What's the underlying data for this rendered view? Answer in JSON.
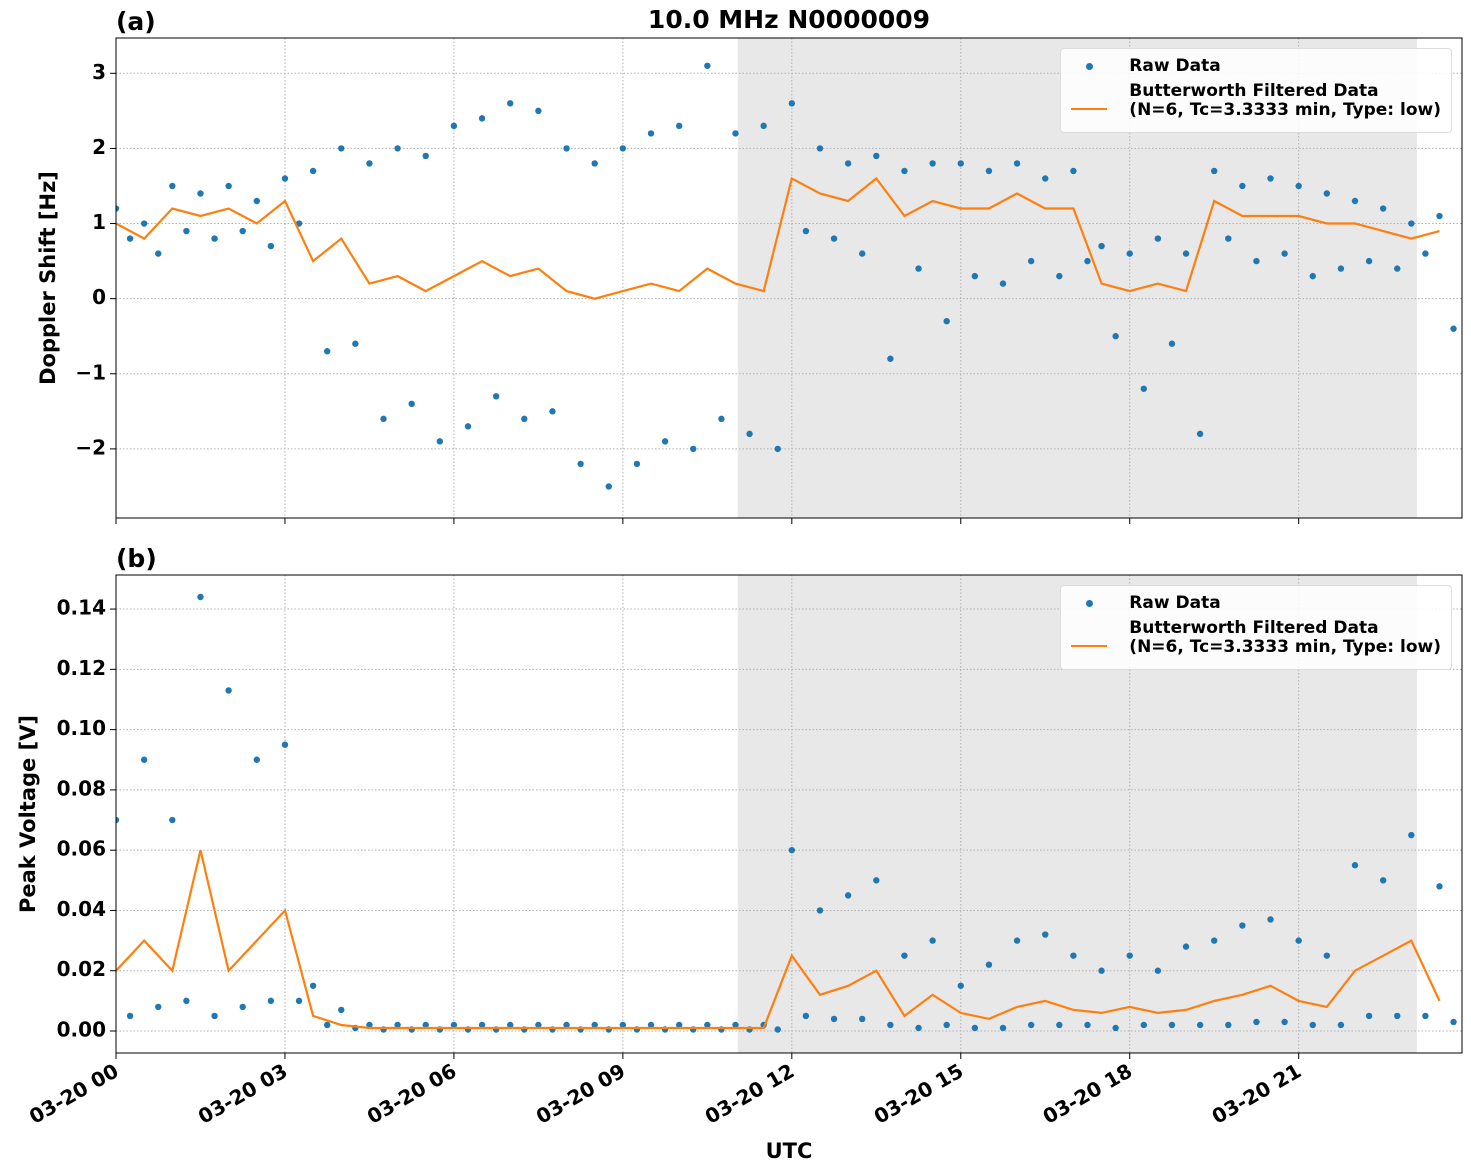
{
  "chart_data": [
    {
      "type": "scatter",
      "title": "10.0 MHz N0000009",
      "panel_label": "(a)",
      "ylabel": "Doppler Shift [Hz]",
      "xlim": [
        0,
        23.9
      ],
      "xticks": [
        0,
        3,
        6,
        9,
        12,
        15,
        18,
        21
      ],
      "ylim": [
        -2.92,
        3.47
      ],
      "yticks": [
        {
          "value": -2,
          "label": "−2"
        },
        {
          "value": -1,
          "label": "−1"
        },
        0,
        1,
        2,
        3
      ],
      "grid": true,
      "legend": "upper right",
      "shaded_span": [
        11.04,
        23.1
      ],
      "series": [
        {
          "name": "Raw Data",
          "type": "scatter",
          "color": "#1f77b4",
          "x": [
            0,
            0.25,
            0.5,
            0.75,
            1,
            1.25,
            1.5,
            1.75,
            2,
            2.25,
            2.5,
            2.75,
            3,
            3.25,
            3.5,
            3.75,
            4,
            4.25,
            4.5,
            4.75,
            5,
            5.25,
            5.5,
            5.75,
            6,
            6.25,
            6.5,
            6.75,
            7,
            7.25,
            7.5,
            7.75,
            8,
            8.25,
            8.5,
            8.75,
            9,
            9.25,
            9.5,
            9.75,
            10,
            10.25,
            10.5,
            10.75,
            11,
            11.25,
            11.5,
            11.75,
            12,
            12.25,
            12.5,
            12.75,
            13,
            13.25,
            13.5,
            13.75,
            14,
            14.25,
            14.5,
            14.75,
            15,
            15.25,
            15.5,
            15.75,
            16,
            16.25,
            16.5,
            16.75,
            17,
            17.25,
            17.5,
            17.75,
            18,
            18.25,
            18.5,
            18.75,
            19,
            19.25,
            19.5,
            19.75,
            20,
            20.25,
            20.5,
            20.75,
            21,
            21.25,
            21.5,
            21.75,
            22,
            22.25,
            22.5,
            22.75,
            23,
            23.25,
            23.5,
            23.75
          ],
          "values": [
            1.2,
            0.8,
            1.0,
            0.6,
            1.5,
            0.9,
            1.4,
            0.8,
            1.5,
            0.9,
            1.3,
            0.7,
            1.6,
            1.0,
            1.7,
            -0.7,
            2.0,
            -0.6,
            1.8,
            -1.6,
            2.0,
            -1.4,
            1.9,
            -1.9,
            2.3,
            -1.7,
            2.4,
            -1.3,
            2.6,
            -1.6,
            2.5,
            -1.5,
            2.0,
            -2.2,
            1.8,
            -2.5,
            2.0,
            -2.2,
            2.2,
            -1.9,
            2.3,
            -2.0,
            3.1,
            -1.6,
            2.2,
            -1.8,
            2.3,
            -2.0,
            2.6,
            0.9,
            2.0,
            0.8,
            1.8,
            0.6,
            1.9,
            -0.8,
            1.7,
            0.4,
            1.8,
            -0.3,
            1.8,
            0.3,
            1.7,
            0.2,
            1.8,
            0.5,
            1.6,
            0.3,
            1.7,
            0.5,
            0.7,
            -0.5,
            0.6,
            -1.2,
            0.8,
            -0.6,
            0.6,
            -1.8,
            1.7,
            0.8,
            1.5,
            0.5,
            1.6,
            0.6,
            1.5,
            0.3,
            1.4,
            0.4,
            1.3,
            0.5,
            1.2,
            0.4,
            1.0,
            0.6,
            1.1,
            -0.4
          ]
        },
        {
          "name": "Butterworth Filtered Data\n(N=6, Tc=3.3333 min, Type: low)",
          "type": "line",
          "color": "#ff7f0e",
          "x": [
            0,
            0.5,
            1,
            1.5,
            2,
            2.5,
            3,
            3.5,
            4,
            4.5,
            5,
            5.5,
            6,
            6.5,
            7,
            7.5,
            8,
            8.5,
            9,
            9.5,
            10,
            10.5,
            11,
            11.5,
            12,
            12.5,
            13,
            13.5,
            14,
            14.5,
            15,
            15.5,
            16,
            16.5,
            17,
            17.5,
            18,
            18.5,
            19,
            19.5,
            20,
            20.5,
            21,
            21.5,
            22,
            22.5,
            23,
            23.5
          ],
          "values": [
            1.0,
            0.8,
            1.2,
            1.1,
            1.2,
            1.0,
            1.3,
            0.5,
            0.8,
            0.2,
            0.3,
            0.1,
            0.3,
            0.5,
            0.3,
            0.4,
            0.1,
            0.0,
            0.1,
            0.2,
            0.1,
            0.4,
            0.2,
            0.1,
            1.6,
            1.4,
            1.3,
            1.6,
            1.1,
            1.3,
            1.2,
            1.2,
            1.4,
            1.2,
            1.2,
            0.2,
            0.1,
            0.2,
            0.1,
            1.3,
            1.1,
            1.1,
            1.1,
            1.0,
            1.0,
            0.9,
            0.8,
            0.9
          ]
        }
      ]
    },
    {
      "type": "scatter",
      "panel_label": "(b)",
      "ylabel": "Peak Voltage [V]",
      "xlabel": "UTC",
      "xlim": [
        0,
        23.9
      ],
      "xticks": [
        {
          "value": 0,
          "label": "03-20 00"
        },
        {
          "value": 3,
          "label": "03-20 03"
        },
        {
          "value": 6,
          "label": "03-20 06"
        },
        {
          "value": 9,
          "label": "03-20 09"
        },
        {
          "value": 12,
          "label": "03-20 12"
        },
        {
          "value": 15,
          "label": "03-20 15"
        },
        {
          "value": 18,
          "label": "03-20 18"
        },
        {
          "value": 21,
          "label": "03-20 21"
        }
      ],
      "ylim": [
        -0.0073,
        0.1513
      ],
      "yticks": [
        {
          "value": 0,
          "label": "0.00"
        },
        {
          "value": 0.02,
          "label": "0.02"
        },
        {
          "value": 0.04,
          "label": "0.04"
        },
        {
          "value": 0.06,
          "label": "0.06"
        },
        {
          "value": 0.08,
          "label": "0.08"
        },
        {
          "value": 0.1,
          "label": "0.10"
        },
        {
          "value": 0.12,
          "label": "0.12"
        },
        {
          "value": 0.14,
          "label": "0.14"
        }
      ],
      "grid": true,
      "legend": "upper right",
      "shaded_span": [
        11.04,
        23.1
      ],
      "series": [
        {
          "name": "Raw Data",
          "type": "scatter",
          "color": "#1f77b4",
          "x": [
            0,
            0.25,
            0.5,
            0.75,
            1,
            1.25,
            1.5,
            1.75,
            2,
            2.25,
            2.5,
            2.75,
            3,
            3.25,
            3.5,
            3.75,
            4,
            4.25,
            4.5,
            4.75,
            5,
            5.25,
            5.5,
            5.75,
            6,
            6.25,
            6.5,
            6.75,
            7,
            7.25,
            7.5,
            7.75,
            8,
            8.25,
            8.5,
            8.75,
            9,
            9.25,
            9.5,
            9.75,
            10,
            10.25,
            10.5,
            10.75,
            11,
            11.25,
            11.5,
            11.75,
            12,
            12.25,
            12.5,
            12.75,
            13,
            13.25,
            13.5,
            13.75,
            14,
            14.25,
            14.5,
            14.75,
            15,
            15.25,
            15.5,
            15.75,
            16,
            16.25,
            16.5,
            16.75,
            17,
            17.25,
            17.5,
            17.75,
            18,
            18.25,
            18.5,
            18.75,
            19,
            19.25,
            19.5,
            19.75,
            20,
            20.25,
            20.5,
            20.75,
            21,
            21.25,
            21.5,
            21.75,
            22,
            22.25,
            22.5,
            22.75,
            23,
            23.25,
            23.5,
            23.75
          ],
          "values": [
            0.07,
            0.005,
            0.09,
            0.008,
            0.07,
            0.01,
            0.144,
            0.005,
            0.113,
            0.008,
            0.09,
            0.01,
            0.095,
            0.01,
            0.015,
            0.002,
            0.007,
            0.001,
            0.002,
            0.0005,
            0.002,
            0.0005,
            0.002,
            0.0005,
            0.002,
            0.0005,
            0.002,
            0.0005,
            0.002,
            0.0005,
            0.002,
            0.0005,
            0.002,
            0.0005,
            0.002,
            0.0005,
            0.002,
            0.0005,
            0.002,
            0.0005,
            0.002,
            0.0005,
            0.002,
            0.0005,
            0.002,
            0.0005,
            0.002,
            0.0005,
            0.06,
            0.005,
            0.04,
            0.004,
            0.045,
            0.004,
            0.05,
            0.002,
            0.025,
            0.001,
            0.03,
            0.002,
            0.015,
            0.001,
            0.022,
            0.001,
            0.03,
            0.002,
            0.032,
            0.002,
            0.025,
            0.002,
            0.02,
            0.001,
            0.025,
            0.002,
            0.02,
            0.002,
            0.028,
            0.002,
            0.03,
            0.002,
            0.035,
            0.003,
            0.037,
            0.003,
            0.03,
            0.002,
            0.025,
            0.002,
            0.055,
            0.005,
            0.05,
            0.005,
            0.065,
            0.005,
            0.048,
            0.003
          ]
        },
        {
          "name": "Butterworth Filtered Data\n(N=6, Tc=3.3333 min, Type: low)",
          "type": "line",
          "color": "#ff7f0e",
          "x": [
            0,
            0.5,
            1,
            1.5,
            2,
            2.5,
            3,
            3.5,
            4,
            4.5,
            5,
            5.5,
            6,
            6.5,
            7,
            7.5,
            8,
            8.5,
            9,
            9.5,
            10,
            10.5,
            11,
            11.5,
            12,
            12.5,
            13,
            13.5,
            14,
            14.5,
            15,
            15.5,
            16,
            16.5,
            17,
            17.5,
            18,
            18.5,
            19,
            19.5,
            20,
            20.5,
            21,
            21.5,
            22,
            22.5,
            23,
            23.5
          ],
          "values": [
            0.02,
            0.03,
            0.02,
            0.06,
            0.02,
            0.03,
            0.04,
            0.005,
            0.002,
            0.001,
            0.001,
            0.001,
            0.001,
            0.001,
            0.001,
            0.001,
            0.001,
            0.001,
            0.001,
            0.001,
            0.001,
            0.001,
            0.001,
            0.001,
            0.025,
            0.012,
            0.015,
            0.02,
            0.005,
            0.012,
            0.006,
            0.004,
            0.008,
            0.01,
            0.007,
            0.006,
            0.008,
            0.006,
            0.007,
            0.01,
            0.012,
            0.015,
            0.01,
            0.008,
            0.02,
            0.025,
            0.03,
            0.01
          ]
        }
      ]
    }
  ]
}
